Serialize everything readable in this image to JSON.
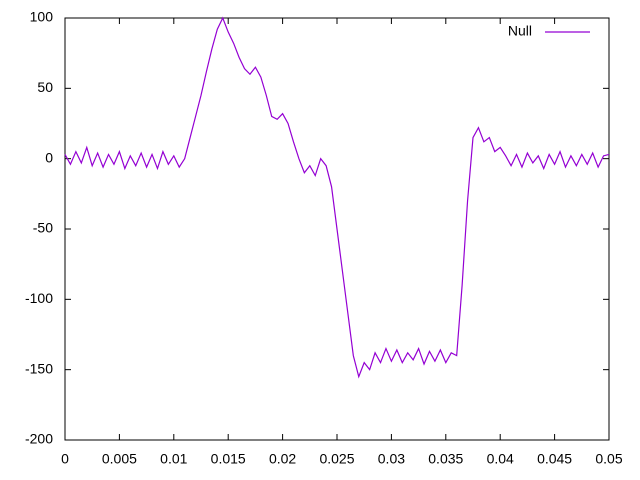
{
  "chart_data": {
    "type": "line",
    "x": [
      0,
      0.0005,
      0.001,
      0.0015,
      0.002,
      0.0025,
      0.003,
      0.0035,
      0.004,
      0.0045,
      0.005,
      0.0055,
      0.006,
      0.0065,
      0.007,
      0.0075,
      0.008,
      0.0085,
      0.009,
      0.0095,
      0.01,
      0.0105,
      0.011,
      0.0115,
      0.012,
      0.0125,
      0.013,
      0.0135,
      0.014,
      0.0145,
      0.015,
      0.0155,
      0.016,
      0.0165,
      0.017,
      0.0175,
      0.018,
      0.0185,
      0.019,
      0.0195,
      0.02,
      0.0205,
      0.021,
      0.0215,
      0.022,
      0.0225,
      0.023,
      0.0235,
      0.024,
      0.0245,
      0.025,
      0.0255,
      0.026,
      0.0265,
      0.027,
      0.0275,
      0.028,
      0.0285,
      0.029,
      0.0295,
      0.03,
      0.0305,
      0.031,
      0.0315,
      0.032,
      0.0325,
      0.033,
      0.0335,
      0.034,
      0.0345,
      0.035,
      0.0355,
      0.036,
      0.0365,
      0.037,
      0.0375,
      0.038,
      0.0385,
      0.039,
      0.0395,
      0.04,
      0.0405,
      0.041,
      0.0415,
      0.042,
      0.0425,
      0.043,
      0.0435,
      0.044,
      0.0445,
      0.045,
      0.0455,
      0.046,
      0.0465,
      0.047,
      0.0475,
      0.048,
      0.0485,
      0.049,
      0.0495,
      0.05
    ],
    "series": [
      {
        "name": "Null",
        "color": "#9400d3",
        "values": [
          3,
          -4,
          5,
          -3,
          8,
          -5,
          4,
          -6,
          3,
          -4,
          5,
          -7,
          2,
          -5,
          4,
          -6,
          3,
          -7,
          5,
          -4,
          2,
          -6,
          0,
          15,
          30,
          45,
          62,
          78,
          92,
          100,
          90,
          82,
          72,
          64,
          60,
          65,
          58,
          45,
          30,
          28,
          32,
          25,
          12,
          0,
          -10,
          -5,
          -12,
          0,
          -5,
          -20,
          -50,
          -80,
          -110,
          -140,
          -155,
          -145,
          -150,
          -138,
          -145,
          -135,
          -144,
          -136,
          -145,
          -138,
          -143,
          -135,
          -146,
          -137,
          -144,
          -136,
          -145,
          -138,
          -140,
          -90,
          -30,
          15,
          22,
          12,
          15,
          5,
          8,
          2,
          -5,
          3,
          -6,
          4,
          -3,
          2,
          -7,
          3,
          -4,
          5,
          -6,
          2,
          -5,
          3,
          -4,
          4,
          -6,
          2,
          3
        ]
      }
    ],
    "xlim": [
      0,
      0.05
    ],
    "xticks": [
      0,
      0.005,
      0.01,
      0.015,
      0.02,
      0.025,
      0.03,
      0.035,
      0.04,
      0.045,
      0.05
    ],
    "ylim": [
      -200,
      100
    ],
    "yticks": [
      100,
      50,
      0,
      -50,
      -100,
      -150,
      -200
    ],
    "legend": "top-right",
    "grid": false
  }
}
